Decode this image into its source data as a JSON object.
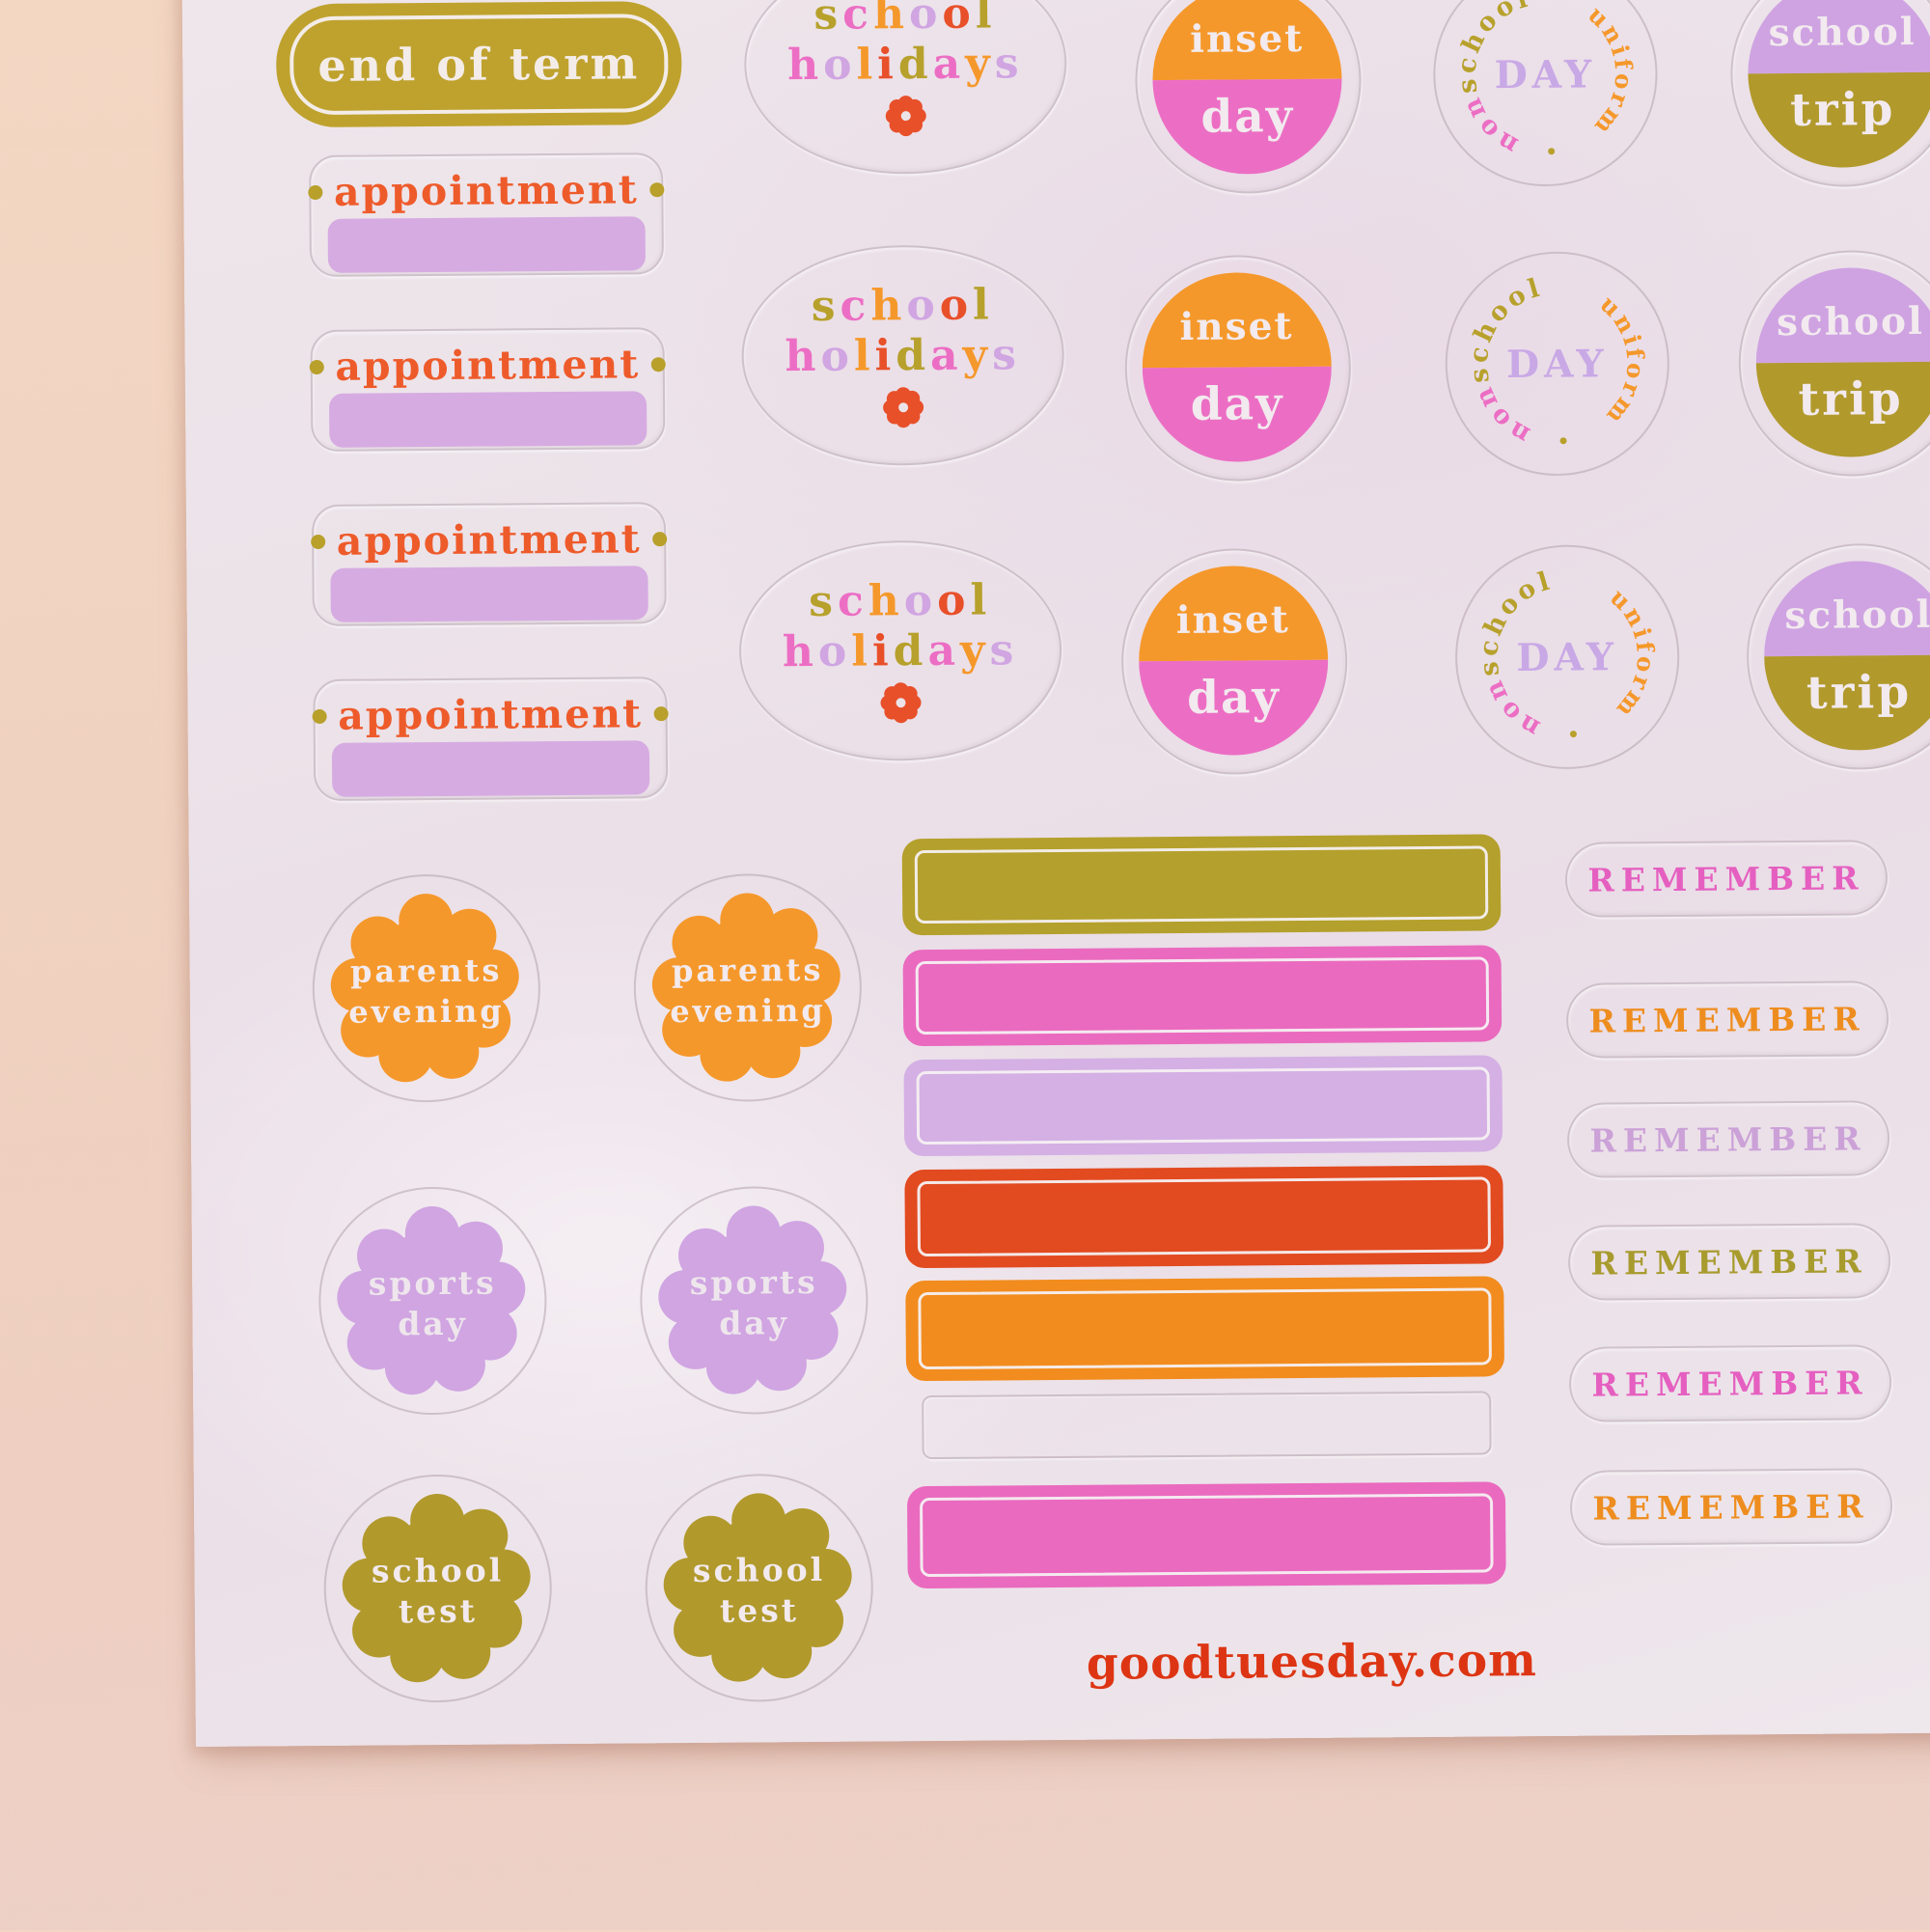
{
  "photo": {
    "description": "planner sticker sheet on peach surface",
    "background_color": "#f0d2c0",
    "sheet_color": "#ece3e9",
    "site_credit": "goodtuesday.com"
  },
  "palette": {
    "olive": "#b7a12c",
    "olive_deep": "#b1992c",
    "mustard": "#bfa22e",
    "orange": "#f5982b",
    "orange_bar": "#f28c1e",
    "pink": "#ec6ec4",
    "pink_bar": "#ea6abf",
    "lilac": "#d0a5e2",
    "lilac_light": "#d4b0e4",
    "red": "#e8502a",
    "red_bar": "#e24a20",
    "site_red": "#dd3513"
  },
  "stickers": {
    "end_of_term": {
      "label": "end of term",
      "color": "#bfa22e",
      "count": 1
    },
    "appointment": {
      "label": "appointment",
      "count": 4,
      "text_color": "#ee5b2b",
      "dot_color": "#b8a02b",
      "bar_color": "#d6abe2"
    },
    "school_holidays": {
      "count": 3,
      "word1": [
        {
          "t": "s",
          "c": "#b7a12c"
        },
        {
          "t": "c",
          "c": "#ec6ec4"
        },
        {
          "t": "h",
          "c": "#f5982b"
        },
        {
          "t": "o",
          "c": "#d0a5e2"
        },
        {
          "t": "o",
          "c": "#e8502a"
        },
        {
          "t": "l",
          "c": "#b7a12c"
        }
      ],
      "word2": [
        {
          "t": "h",
          "c": "#ec6ec4"
        },
        {
          "t": "o",
          "c": "#d0a5e2"
        },
        {
          "t": "l",
          "c": "#f5982b"
        },
        {
          "t": "i",
          "c": "#e8502a"
        },
        {
          "t": "d",
          "c": "#b7a12c"
        },
        {
          "t": "a",
          "c": "#ec6ec4"
        },
        {
          "t": "y",
          "c": "#f5982b"
        },
        {
          "t": "s",
          "c": "#d0a5e2"
        }
      ],
      "flower_color": "#e8502a"
    },
    "inset_day": {
      "count": 3,
      "top_label": "inset",
      "bottom_label": "day",
      "top_color": "#f5982b",
      "bottom_color": "#ec6ec4"
    },
    "non_uniform_day": {
      "count": 3,
      "arc_school": "school",
      "arc_uniform": "uniform",
      "arc_non": "non",
      "separator": "•",
      "center_label": "DAY",
      "school_color": "#b7a12c",
      "uniform_color": "#f5982b",
      "non_color": "#ec6ec4",
      "dot_color": "#b8a02b",
      "day_color": "#c9a8e6"
    },
    "school_trip": {
      "count": 3,
      "top_label": "school",
      "bottom_label": "trip",
      "top_color": "#cfa3e2",
      "bottom_color": "#b1992c"
    },
    "parents_evening": {
      "count": 2,
      "line1": "parents",
      "line2": "evening",
      "color": "#f5982b"
    },
    "sports_day": {
      "count": 2,
      "line1": "sports",
      "line2": "day",
      "color": "#d0a5e2"
    },
    "school_test": {
      "count": 2,
      "line1": "school",
      "line2": "test",
      "color": "#b1992c"
    },
    "writein_bars": {
      "count": 7,
      "items": [
        {
          "color": "#b4a02c",
          "filled": true
        },
        {
          "color": "#ea6abf",
          "filled": true
        },
        {
          "color": "#d4b0e4",
          "filled": true
        },
        {
          "color": "#e24a20",
          "filled": true
        },
        {
          "color": "#f28c1e",
          "filled": true
        },
        {
          "color": null,
          "filled": false
        },
        {
          "color": "#ea6abf",
          "filled": true
        }
      ]
    },
    "remember": {
      "label": "REMEMBER",
      "count": 6,
      "colors": [
        "#e55fc0",
        "#ee8d1f",
        "#cba1d8",
        "#a89b2e",
        "#e55fc0",
        "#ee8d1f"
      ]
    }
  }
}
